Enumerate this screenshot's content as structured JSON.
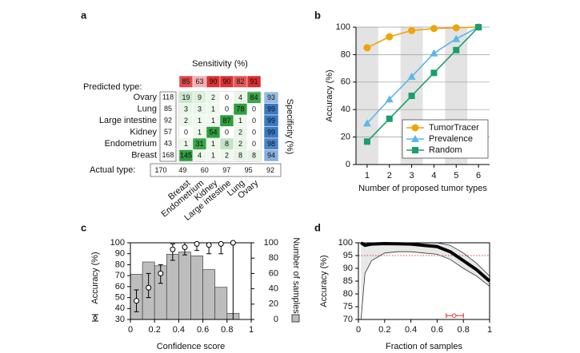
{
  "chart_data": [
    {
      "type": "heatmap",
      "panel": "a",
      "title": "Sensitivity (%)",
      "row_axis_label": "Predicted type:",
      "col_axis_label": "Actual type:",
      "side_label": "Specificity (%)",
      "rows": [
        "Ovary",
        "Lung",
        "Large intestine",
        "Kidney",
        "Endometrium",
        "Breast"
      ],
      "columns": [
        "Breast",
        "Endometrium",
        "Kidney",
        "Large intestine",
        "Lung",
        "Ovary"
      ],
      "values": [
        [
          19,
          9,
          2,
          0,
          4,
          84
        ],
        [
          3,
          3,
          1,
          0,
          78,
          0
        ],
        [
          2,
          1,
          1,
          87,
          1,
          0
        ],
        [
          0,
          1,
          54,
          0,
          2,
          0
        ],
        [
          1,
          31,
          1,
          8,
          2,
          0
        ],
        [
          145,
          4,
          1,
          2,
          8,
          8
        ]
      ],
      "sensitivity": [
        85,
        63,
        90,
        90,
        82,
        91
      ],
      "specificity": [
        93,
        99,
        99,
        99,
        98,
        94
      ],
      "row_totals": [
        118,
        85,
        92,
        57,
        43,
        168
      ],
      "col_totals": [
        170,
        49,
        60,
        97,
        95,
        92
      ]
    },
    {
      "type": "line",
      "panel": "b",
      "xlabel": "Number of proposed tumor types",
      "ylabel": "Accuracy (%)",
      "x": [
        1,
        2,
        3,
        4,
        5,
        6
      ],
      "xlim": [
        0.5,
        6.5
      ],
      "xticks": [
        1,
        2,
        3,
        4,
        5,
        6
      ],
      "ylim": [
        0,
        100
      ],
      "yticks": [
        0,
        20,
        40,
        60,
        80,
        100
      ],
      "grid": true,
      "legend": "lower right",
      "series": [
        {
          "name": "TumorTracer",
          "color": "#f0a30a",
          "marker": "circle",
          "values": [
            85,
            93,
            97.5,
            99,
            99.5,
            100
          ]
        },
        {
          "name": "Prevalence",
          "color": "#5bb8e8",
          "marker": "triangle",
          "values": [
            30,
            47.5,
            64,
            81,
            91.5,
            100
          ]
        },
        {
          "name": "Random",
          "color": "#1a9e6a",
          "marker": "square",
          "values": [
            16.7,
            33.3,
            50,
            66.7,
            83.3,
            100
          ]
        }
      ]
    },
    {
      "type": "histogram",
      "panel": "c",
      "xlabel": "Confidence score",
      "ylabel": "Accuracy (%)",
      "y2label": "Number of samples",
      "xlim": [
        0,
        1
      ],
      "xticks": [
        0,
        0.2,
        0.4,
        0.6,
        0.8,
        1
      ],
      "ylim": [
        30,
        100
      ],
      "yticks": [
        30,
        40,
        50,
        60,
        70,
        80,
        90,
        100
      ],
      "y2lim": [
        0,
        100
      ],
      "y2ticks": [
        0,
        20,
        40,
        60,
        80,
        100
      ],
      "bins": [
        0,
        0.1,
        0.2,
        0.3,
        0.4,
        0.5,
        0.6,
        0.7,
        0.8,
        0.9
      ],
      "series": [
        {
          "axis": "y2",
          "color": "#bdbdbd",
          "values": [
            59,
            75,
            70,
            85,
            88,
            83,
            65,
            42,
            8
          ]
        },
        {
          "axis": "y",
          "color": "#ffffff",
          "x": [
            0.05,
            0.15,
            0.25,
            0.35,
            0.45,
            0.55,
            0.65,
            0.75,
            0.85
          ],
          "values": [
            47,
            59,
            72,
            94,
            96,
            99,
            98,
            99,
            100
          ],
          "ci_low": [
            37,
            50,
            63,
            84,
            89,
            93,
            90,
            90,
            30
          ],
          "ci_high": [
            57,
            72,
            80,
            99,
            100,
            100,
            100,
            100,
            100
          ]
        }
      ]
    },
    {
      "type": "band",
      "panel": "d",
      "xlabel": "Fraction of samples",
      "ylabel": "Accuracy (%)",
      "xlim": [
        0,
        1
      ],
      "xticks": [
        0,
        0.2,
        0.4,
        0.6,
        0.8,
        1
      ],
      "ylim": [
        70,
        100
      ],
      "yticks": [
        70,
        75,
        80,
        85,
        90,
        95,
        100
      ],
      "x": [
        0.02,
        0.05,
        0.1,
        0.2,
        0.3,
        0.4,
        0.5,
        0.6,
        0.7,
        0.8,
        0.9,
        1
      ],
      "series": [
        {
          "color": "#000000",
          "values": [
            100,
            99,
            99.5,
            99.7,
            99.6,
            99.5,
            99,
            98.5,
            96.5,
            93,
            89.5,
            85
          ]
        }
      ],
      "band_low": [
        70,
        88,
        93,
        96,
        96.5,
        96.5,
        96,
        95.5,
        93.5,
        90,
        87,
        83
      ],
      "band_high": [
        100,
        100,
        100,
        100,
        100,
        100,
        100,
        100,
        99,
        96,
        92,
        87
      ],
      "ref_line": 95,
      "ref_color": "#e03c3c",
      "interval": {
        "y": 71.5,
        "low": 0.67,
        "center": 0.73,
        "high": 0.8
      }
    }
  ]
}
